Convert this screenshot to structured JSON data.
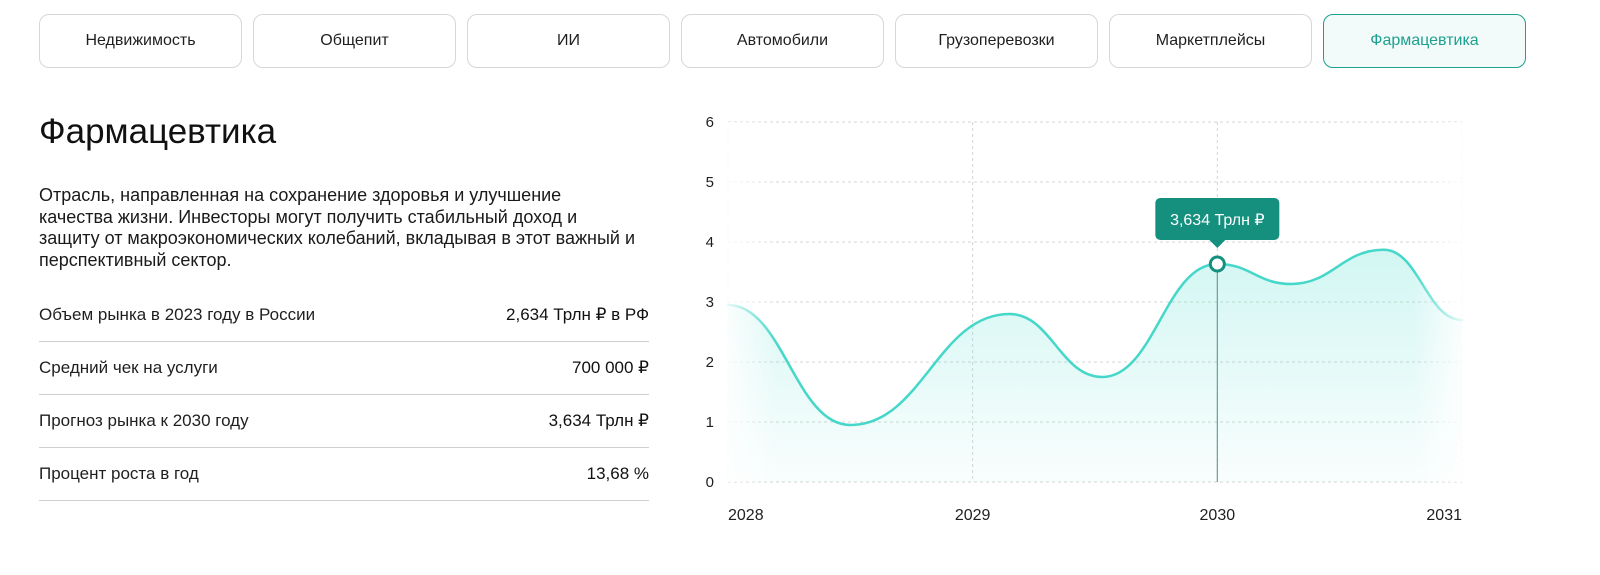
{
  "tabs": [
    {
      "label": "Недвижимость"
    },
    {
      "label": "Общепит"
    },
    {
      "label": "ИИ"
    },
    {
      "label": "Автомобили"
    },
    {
      "label": "Грузоперевозки"
    },
    {
      "label": "Маркетплейсы"
    },
    {
      "label": "Фармацевтика"
    }
  ],
  "active_tab": 6,
  "section": {
    "title": "Фармацевтика",
    "description": "Отрасль, направленная на сохранение здоровья и улучшение качества жизни. Инвесторы могут получить стабильный доход и защиту от макроэкономических колебаний, вкладывая в этот важный и перспективный сектор."
  },
  "stats": [
    {
      "label": "Объем рынка в 2023 году в России",
      "value": "2,634 Трлн ₽ в РФ"
    },
    {
      "label": "Средний чек на услуги",
      "value": "700 000 ₽"
    },
    {
      "label": "Прогноз рынка к 2030 году",
      "value": "3,634 Трлн ₽"
    },
    {
      "label": "Процент роста в год",
      "value": "13,68 %"
    }
  ],
  "colors": {
    "accent": "#1e9f8f",
    "line": "#45d7c9",
    "tooltip_bg": "#15907f"
  },
  "chart_data": {
    "type": "area",
    "x": [
      2028,
      2028.5,
      2029.15,
      2029.53,
      2030,
      2030.3,
      2030.68,
      2031
    ],
    "y": [
      2.95,
      0.95,
      2.8,
      1.75,
      3.634,
      3.3,
      3.87,
      2.7
    ],
    "x_ticks": [
      "2028",
      "2029",
      "2030",
      "2031"
    ],
    "y_ticks": [
      "0",
      "1",
      "2",
      "3",
      "4",
      "5",
      "6"
    ],
    "xlim": [
      2028,
      2031
    ],
    "ylim": [
      0,
      6
    ],
    "grid": true,
    "highlight": {
      "x": 2030,
      "y": 3.634,
      "label": "3,634 Трлн ₽"
    }
  }
}
